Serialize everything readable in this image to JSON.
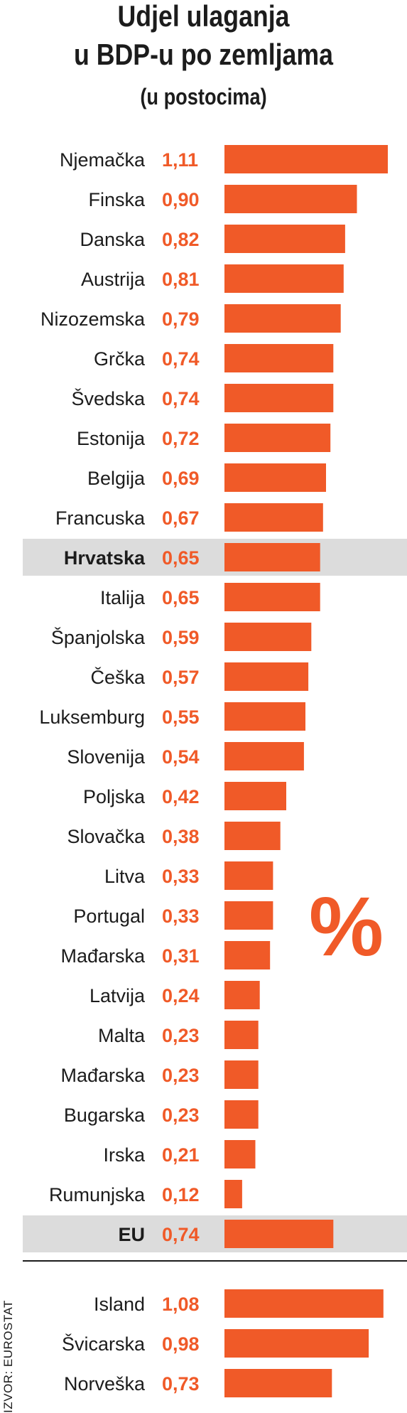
{
  "title_line1": "Udjel ulaganja",
  "title_line2": "u BDP-u po zemljama",
  "subtitle": "(u postocima)",
  "percent_sign": "%",
  "source": "IZVOR: EUROSTAT",
  "colors": {
    "bar": "#f05a28",
    "value_text": "#f05a28",
    "highlight_band": "#dcdcdc",
    "text": "#1c1c1c"
  },
  "chart_data": {
    "type": "bar",
    "orientation": "horizontal",
    "title": "Udjel ulaganja u BDP-u po zemljama",
    "subtitle": "(u postocima)",
    "categories": [
      "Njemačka",
      "Finska",
      "Danska",
      "Austrija",
      "Nizozemska",
      "Grčka",
      "Švedska",
      "Estonija",
      "Belgija",
      "Francuska",
      "Hrvatska",
      "Italija",
      "Španjolska",
      "Češka",
      "Luksemburg",
      "Slovenija",
      "Poljska",
      "Slovačka",
      "Litva",
      "Portugal",
      "Mađarska",
      "Latvija",
      "Malta",
      "Mađarska",
      "Bugarska",
      "Irska",
      "Rumunjska",
      "EU",
      "Island",
      "Švicarska",
      "Norveška"
    ],
    "values": [
      1.11,
      0.9,
      0.82,
      0.81,
      0.79,
      0.74,
      0.74,
      0.72,
      0.69,
      0.67,
      0.65,
      0.65,
      0.59,
      0.57,
      0.55,
      0.54,
      0.42,
      0.38,
      0.33,
      0.33,
      0.31,
      0.24,
      0.23,
      0.23,
      0.23,
      0.21,
      0.12,
      0.74,
      1.08,
      0.98,
      0.73
    ],
    "value_labels": [
      "1,11",
      "0,90",
      "0,82",
      "0,81",
      "0,79",
      "0,74",
      "0,74",
      "0,72",
      "0,69",
      "0,67",
      "0,65",
      "0,65",
      "0,59",
      "0,57",
      "0,55",
      "0,54",
      "0,42",
      "0,38",
      "0,33",
      "0,33",
      "0,31",
      "0,24",
      "0,23",
      "0,23",
      "0,23",
      "0,21",
      "0,12",
      "0,74",
      "1,08",
      "0,98",
      "0,73"
    ],
    "highlighted": [
      "Hrvatska",
      "EU"
    ],
    "separator_before": "Island",
    "xlim": [
      0,
      1.11
    ]
  }
}
